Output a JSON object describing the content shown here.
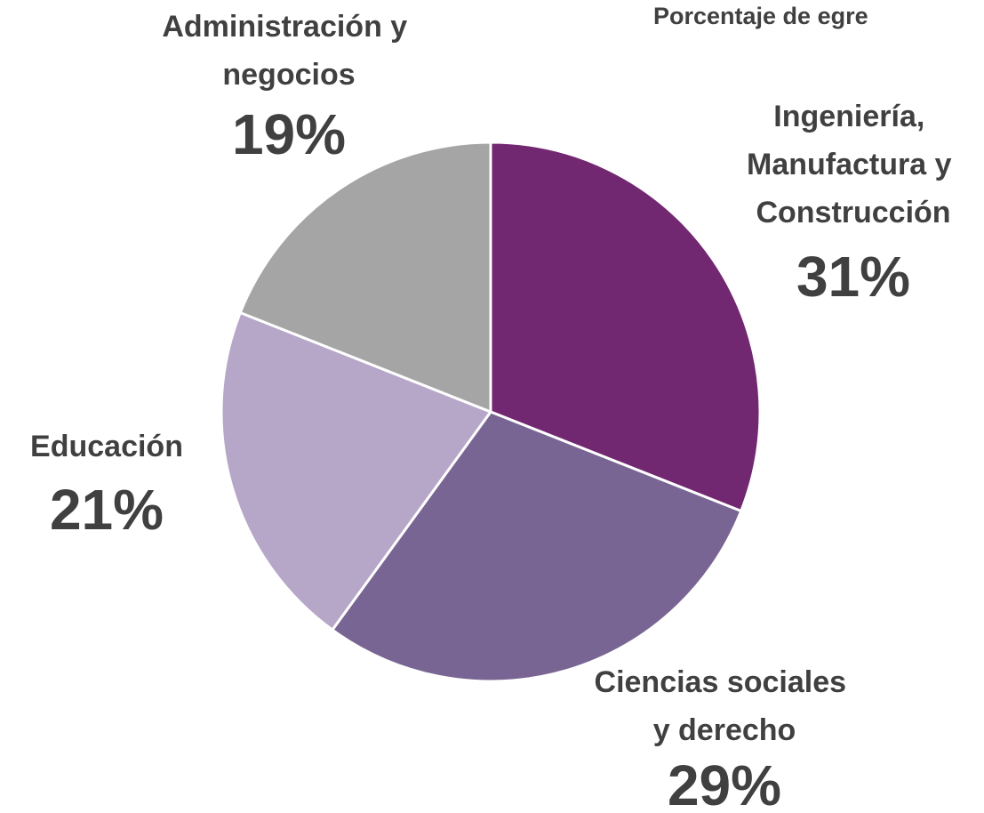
{
  "chart_data": {
    "type": "pie",
    "title": "Porcentaje de egre",
    "categories": [
      "Ingeniería, Manufactura y Construcción",
      "Ciencias sociales y derecho",
      "Educación",
      "Administración y negocios"
    ],
    "values": [
      31,
      29,
      21,
      19
    ],
    "value_labels": [
      "31%",
      "29%",
      "21%",
      "19%"
    ],
    "colors": [
      "#722771",
      "#796593",
      "#b6a6c8",
      "#a5a5a5"
    ]
  }
}
